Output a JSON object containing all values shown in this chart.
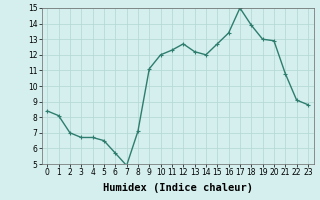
{
  "x": [
    0,
    1,
    2,
    3,
    4,
    5,
    6,
    7,
    8,
    9,
    10,
    11,
    12,
    13,
    14,
    15,
    16,
    17,
    18,
    19,
    20,
    21,
    22,
    23
  ],
  "y": [
    8.4,
    8.1,
    7.0,
    6.7,
    6.7,
    6.5,
    5.7,
    4.9,
    7.1,
    11.1,
    12.0,
    12.3,
    12.7,
    12.2,
    12.0,
    12.7,
    13.4,
    15.0,
    13.9,
    13.0,
    12.9,
    10.8,
    9.1,
    8.8
  ],
  "line_color": "#2e7d6e",
  "marker": "+",
  "marker_size": 3,
  "linewidth": 1.0,
  "xlabel": "Humidex (Indice chaleur)",
  "ylim": [
    5,
    15
  ],
  "xlim_min": -0.5,
  "xlim_max": 23.5,
  "yticks": [
    5,
    6,
    7,
    8,
    9,
    10,
    11,
    12,
    13,
    14,
    15
  ],
  "xticks": [
    0,
    1,
    2,
    3,
    4,
    5,
    6,
    7,
    8,
    9,
    10,
    11,
    12,
    13,
    14,
    15,
    16,
    17,
    18,
    19,
    20,
    21,
    22,
    23
  ],
  "background_color": "#d4efee",
  "grid_color": "#b2d8d4",
  "tick_fontsize": 5.5,
  "xlabel_fontsize": 7.5
}
